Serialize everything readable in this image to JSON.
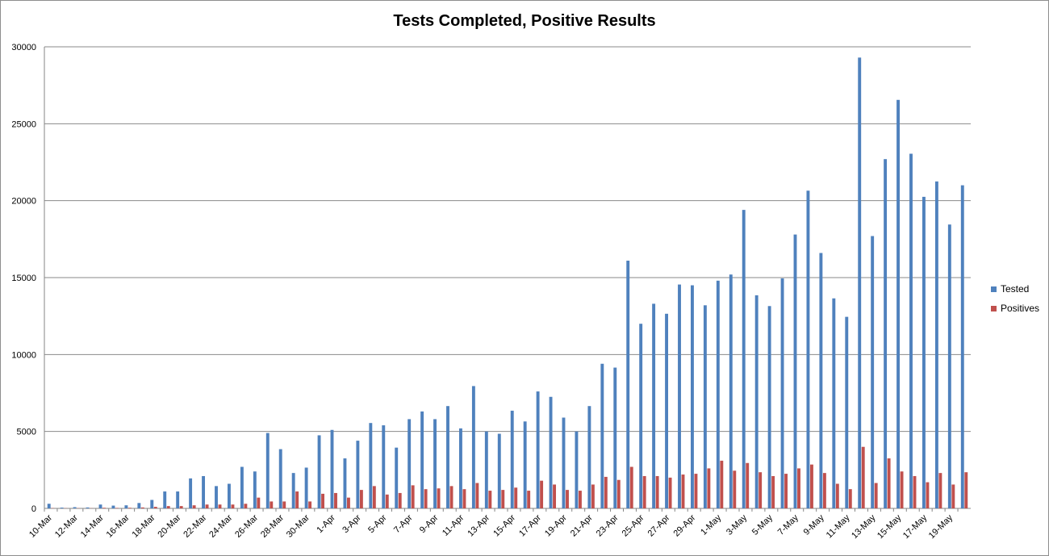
{
  "chart_data": {
    "type": "bar",
    "title": "Tests Completed, Positive Results",
    "xlabel": "",
    "ylabel": "",
    "ylim": [
      0,
      30000
    ],
    "yticks": [
      0,
      5000,
      10000,
      15000,
      20000,
      25000,
      30000
    ],
    "grid": true,
    "legend_position": "right",
    "categories": [
      "10-Mar",
      "11-Mar",
      "12-Mar",
      "13-Mar",
      "14-Mar",
      "15-Mar",
      "16-Mar",
      "17-Mar",
      "18-Mar",
      "19-Mar",
      "20-Mar",
      "21-Mar",
      "22-Mar",
      "23-Mar",
      "24-Mar",
      "25-Mar",
      "26-Mar",
      "27-Mar",
      "28-Mar",
      "29-Mar",
      "30-Mar",
      "31-Mar",
      "1-Apr",
      "2-Apr",
      "3-Apr",
      "4-Apr",
      "5-Apr",
      "6-Apr",
      "7-Apr",
      "8-Apr",
      "9-Apr",
      "10-Apr",
      "11-Apr",
      "12-Apr",
      "13-Apr",
      "14-Apr",
      "15-Apr",
      "16-Apr",
      "17-Apr",
      "18-Apr",
      "19-Apr",
      "20-Apr",
      "21-Apr",
      "22-Apr",
      "23-Apr",
      "24-Apr",
      "25-Apr",
      "26-Apr",
      "27-Apr",
      "28-Apr",
      "29-Apr",
      "30-Apr",
      "1-May",
      "2-May",
      "3-May",
      "4-May",
      "5-May",
      "6-May",
      "7-May",
      "8-May",
      "9-May",
      "10-May",
      "11-May",
      "12-May",
      "13-May",
      "14-May",
      "15-May",
      "16-May",
      "17-May",
      "18-May",
      "19-May",
      "20-May"
    ],
    "shown_tick_labels": [
      "10-Mar",
      "12-Mar",
      "14-Mar",
      "16-Mar",
      "18-Mar",
      "20-Mar",
      "22-Mar",
      "24-Mar",
      "26-Mar",
      "28-Mar",
      "30-Mar",
      "1-Apr",
      "3-Apr",
      "5-Apr",
      "7-Apr",
      "9-Apr",
      "11-Apr",
      "13-Apr",
      "15-Apr",
      "17-Apr",
      "19-Apr",
      "21-Apr",
      "23-Apr",
      "25-Apr",
      "27-Apr",
      "29-Apr",
      "1-May",
      "3-May",
      "5-May",
      "7-May",
      "9-May",
      "11-May",
      "13-May",
      "15-May",
      "17-May",
      "19-May"
    ],
    "series": [
      {
        "name": "Tested",
        "color": "#4f81bd",
        "values": [
          300,
          50,
          80,
          60,
          250,
          180,
          200,
          350,
          550,
          1100,
          1100,
          1950,
          2100,
          1450,
          1600,
          2700,
          2400,
          4900,
          3850,
          2300,
          2650,
          4750,
          5100,
          3250,
          4400,
          5550,
          5400,
          3950,
          5800,
          6300,
          5800,
          6650,
          5200,
          7950,
          5000,
          4850,
          6350,
          5650,
          7600,
          7250,
          5900,
          5000,
          6650,
          9400,
          9150,
          16100,
          12000,
          13300,
          12650,
          14550,
          14500,
          13200,
          14800,
          15200,
          19400,
          13850,
          13150,
          14950,
          17800,
          20650,
          16600,
          13650,
          12450,
          29300,
          17700,
          22700,
          26550,
          23050,
          20250,
          21250,
          18450,
          21000
        ]
      },
      {
        "name": "Positives",
        "color": "#c0504d",
        "values": [
          20,
          10,
          15,
          10,
          40,
          30,
          40,
          60,
          100,
          150,
          150,
          200,
          250,
          250,
          250,
          300,
          700,
          450,
          450,
          1100,
          450,
          950,
          1000,
          700,
          1200,
          1450,
          900,
          1000,
          1500,
          1250,
          1300,
          1450,
          1250,
          1650,
          1150,
          1200,
          1350,
          1150,
          1800,
          1550,
          1200,
          1150,
          1550,
          2050,
          1850,
          2700,
          2100,
          2100,
          2000,
          2200,
          2250,
          2600,
          3100,
          2450,
          2950,
          2350,
          2100,
          2250,
          2600,
          2850,
          2300,
          1600,
          1250,
          4000,
          1650,
          3250,
          2400,
          2100,
          1700,
          2300,
          1550,
          2350
        ]
      }
    ]
  }
}
